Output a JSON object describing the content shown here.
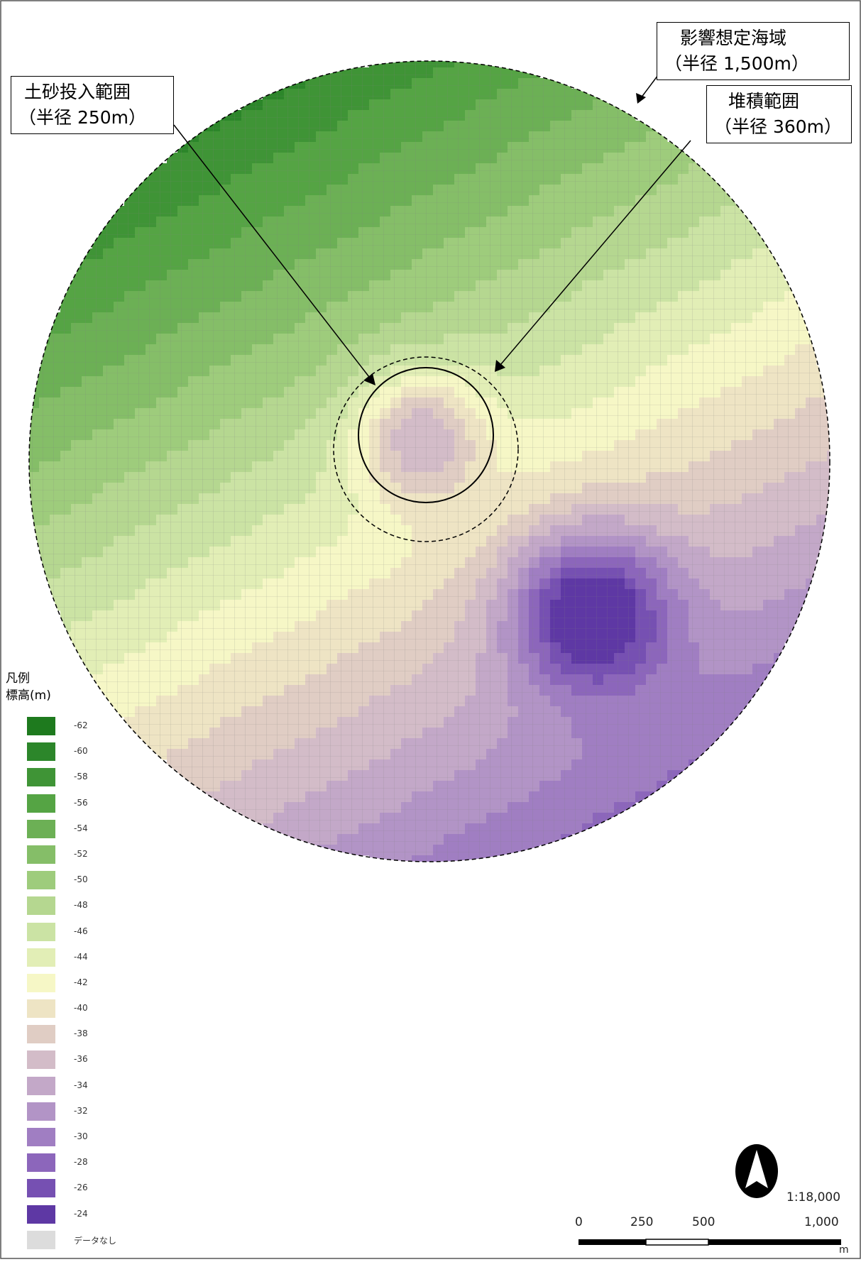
{
  "callouts": {
    "impact_area": {
      "line1": "影響想定海域",
      "line2": "（半径 1,500m）"
    },
    "sediment_input": {
      "line1": "土砂投入範囲",
      "line2": "（半径 250m）"
    },
    "deposition": {
      "line1": "堆積範囲",
      "line2": "（半径 360m）"
    }
  },
  "legend": {
    "title_line1": "凡例",
    "title_line2": "標高(m)",
    "items": [
      {
        "label": "-62",
        "color": "#1e7a1e"
      },
      {
        "label": "-60",
        "color": "#2c862a"
      },
      {
        "label": "-58",
        "color": "#3f9436"
      },
      {
        "label": "-56",
        "color": "#55a444"
      },
      {
        "label": "-54",
        "color": "#6cb055"
      },
      {
        "label": "-52",
        "color": "#85be68"
      },
      {
        "label": "-50",
        "color": "#9ecc7c"
      },
      {
        "label": "-48",
        "color": "#b5d790"
      },
      {
        "label": "-46",
        "color": "#cbe3a4"
      },
      {
        "label": "-44",
        "color": "#e2eeb6"
      },
      {
        "label": "-42",
        "color": "#f6f7c6"
      },
      {
        "label": "-40",
        "color": "#eee4c4"
      },
      {
        "label": "-38",
        "color": "#e0cdc4"
      },
      {
        "label": "-36",
        "color": "#d3bcc8"
      },
      {
        "label": "-34",
        "color": "#c3a8c8"
      },
      {
        "label": "-32",
        "color": "#b294c6"
      },
      {
        "label": "-30",
        "color": "#a07ec2"
      },
      {
        "label": "-28",
        "color": "#8c66bb"
      },
      {
        "label": "-26",
        "color": "#7650b2"
      },
      {
        "label": "-24",
        "color": "#5e38a4"
      },
      {
        "label": "データなし",
        "color": "#dcdcdc"
      }
    ]
  },
  "scale": {
    "ratio": "1:18,000",
    "ticks": [
      "0",
      "250",
      "500",
      "1,000"
    ],
    "unit": "m"
  },
  "north_arrow": {
    "icon": "north-arrow-icon"
  },
  "colors": {
    "frame": "#555555",
    "grid_line": "#8c8c8c"
  }
}
